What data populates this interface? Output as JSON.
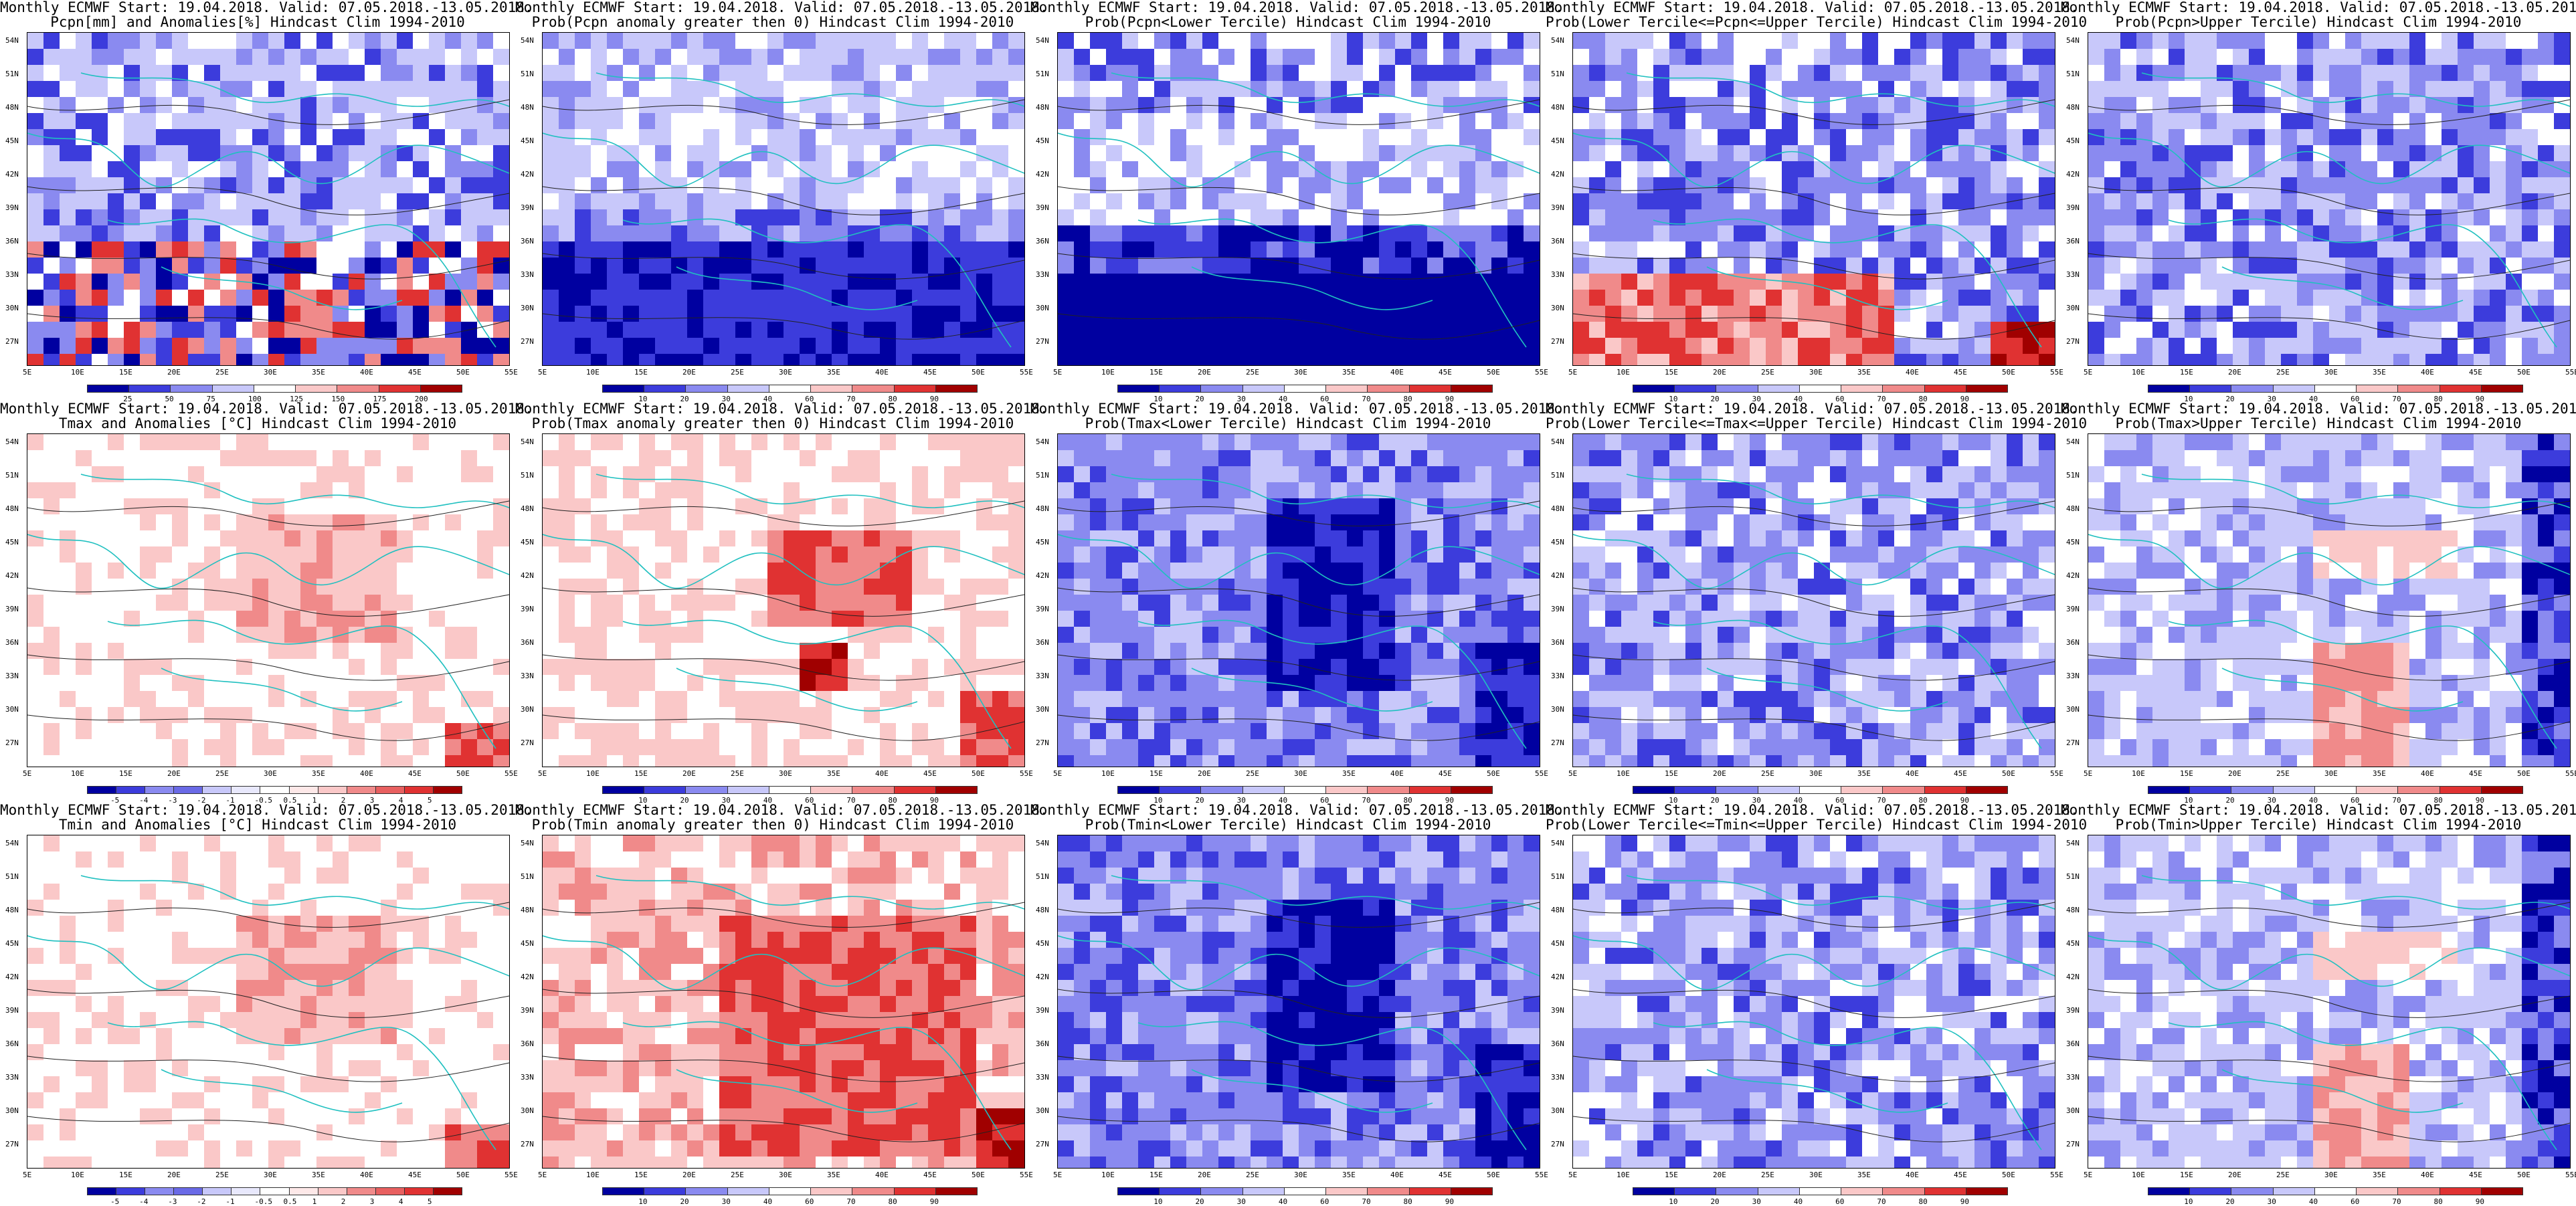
{
  "figure": {
    "common_line1": "Monthly ECMWF Start: 19.04.2018. Valid: 07.05.2018.-13.05.2018.",
    "lat_ticks": [
      "54N",
      "51N",
      "48N",
      "45N",
      "42N",
      "39N",
      "36N",
      "33N",
      "30N",
      "27N"
    ],
    "lon_ticks": [
      "5E",
      "10E",
      "15E",
      "20E",
      "25E",
      "30E",
      "35E",
      "40E",
      "45E",
      "50E",
      "55E"
    ],
    "panels": [
      {
        "row": 0,
        "col": 0,
        "line2": "Pcpn[mm] and Anomalies[%] Hindcast Clim 1994-2010",
        "kind": "anom_pcp",
        "cbar": [
          "25",
          "50",
          "75",
          "100",
          "125",
          "150",
          "175",
          "200"
        ]
      },
      {
        "row": 0,
        "col": 1,
        "line2": "Prob(Pcpn anomaly greater then 0) Hindcast Clim 1994-2010",
        "kind": "prob_blue_south",
        "cbar": [
          "10",
          "20",
          "30",
          "40",
          "60",
          "70",
          "80",
          "90"
        ]
      },
      {
        "row": 0,
        "col": 2,
        "line2": "Prob(Pcpn<Lower Tercile) Hindcast Clim 1994-2010",
        "kind": "prob_dark_south",
        "cbar": [
          "10",
          "20",
          "30",
          "40",
          "60",
          "70",
          "80",
          "90"
        ]
      },
      {
        "row": 0,
        "col": 3,
        "line2": "Prob(Lower Tercile<=Pcpn<=Upper Tercile) Hindcast Clim 1994-2010",
        "kind": "prob_red_south",
        "cbar": [
          "10",
          "20",
          "30",
          "40",
          "60",
          "70",
          "80",
          "90"
        ]
      },
      {
        "row": 0,
        "col": 4,
        "line2": "Prob(Pcpn>Upper Tercile) Hindcast Clim 1994-2010",
        "kind": "prob_blue_mix",
        "cbar": [
          "10",
          "20",
          "30",
          "40",
          "60",
          "70",
          "80",
          "90"
        ]
      },
      {
        "row": 1,
        "col": 0,
        "line2": "Tmax and Anomalies [°C] Hindcast Clim 1994-2010",
        "kind": "anom_temp_light",
        "cbar": [
          "-5",
          "-4",
          "-3",
          "-2",
          "-1",
          "-0.5",
          "0.5",
          "1",
          "2",
          "3",
          "4",
          "5"
        ]
      },
      {
        "row": 1,
        "col": 1,
        "line2": "Prob(Tmax anomaly greater then 0) Hindcast Clim 1994-2010",
        "kind": "prob_red_center",
        "cbar": [
          "10",
          "20",
          "30",
          "40",
          "60",
          "70",
          "80",
          "90"
        ]
      },
      {
        "row": 1,
        "col": 2,
        "line2": "Prob(Tmax<Lower Tercile) Hindcast Clim 1994-2010",
        "kind": "prob_blue_center",
        "cbar": [
          "10",
          "20",
          "30",
          "40",
          "60",
          "70",
          "80",
          "90"
        ]
      },
      {
        "row": 1,
        "col": 3,
        "line2": "Prob(Lower Tercile<=Tmax<=Upper Tercile) Hindcast Clim 1994-2010",
        "kind": "prob_blue_mix",
        "cbar": [
          "10",
          "20",
          "30",
          "40",
          "60",
          "70",
          "80",
          "90"
        ]
      },
      {
        "row": 1,
        "col": 4,
        "line2": "Prob(Tmax>Upper Tercile) Hindcast Clim 1994-2010",
        "kind": "prob_light_mix",
        "cbar": [
          "10",
          "20",
          "30",
          "40",
          "60",
          "70",
          "80",
          "90"
        ]
      },
      {
        "row": 2,
        "col": 0,
        "line2": "Tmin and Anomalies [°C] Hindcast Clim 1994-2010",
        "kind": "anom_temp_light",
        "cbar": [
          "-5",
          "-4",
          "-3",
          "-2",
          "-1",
          "-0.5",
          "0.5",
          "1",
          "2",
          "3",
          "4",
          "5"
        ]
      },
      {
        "row": 2,
        "col": 1,
        "line2": "Prob(Tmin anomaly greater then 0) Hindcast Clim 1994-2010",
        "kind": "prob_red_strong",
        "cbar": [
          "10",
          "20",
          "30",
          "40",
          "60",
          "70",
          "80",
          "90"
        ]
      },
      {
        "row": 2,
        "col": 2,
        "line2": "Prob(Tmin<Lower Tercile) Hindcast Clim 1994-2010",
        "kind": "prob_blue_center",
        "cbar": [
          "10",
          "20",
          "30",
          "40",
          "60",
          "70",
          "80",
          "90"
        ]
      },
      {
        "row": 2,
        "col": 3,
        "line2": "Prob(Lower Tercile<=Tmin<=Upper Tercile) Hindcast Clim 1994-2010",
        "kind": "prob_blue_mix",
        "cbar": [
          "10",
          "20",
          "30",
          "40",
          "60",
          "70",
          "80",
          "90"
        ]
      },
      {
        "row": 2,
        "col": 4,
        "line2": "Prob(Tmin>Upper Tercile) Hindcast Clim 1994-2010",
        "kind": "prob_light_mix",
        "cbar": [
          "10",
          "20",
          "30",
          "40",
          "60",
          "70",
          "80",
          "90"
        ]
      }
    ],
    "colors": {
      "blue_dark": "#0000a0",
      "blue_mid": "#3c3cdc",
      "blue_light": "#8a8af0",
      "blue_pale": "#c8c8fa",
      "red_pale": "#fac8c8",
      "red_light": "#f08a8a",
      "red_mid": "#e03232",
      "red_dark": "#a00000",
      "coast": "#20c0c0",
      "contour": "#222222"
    }
  }
}
